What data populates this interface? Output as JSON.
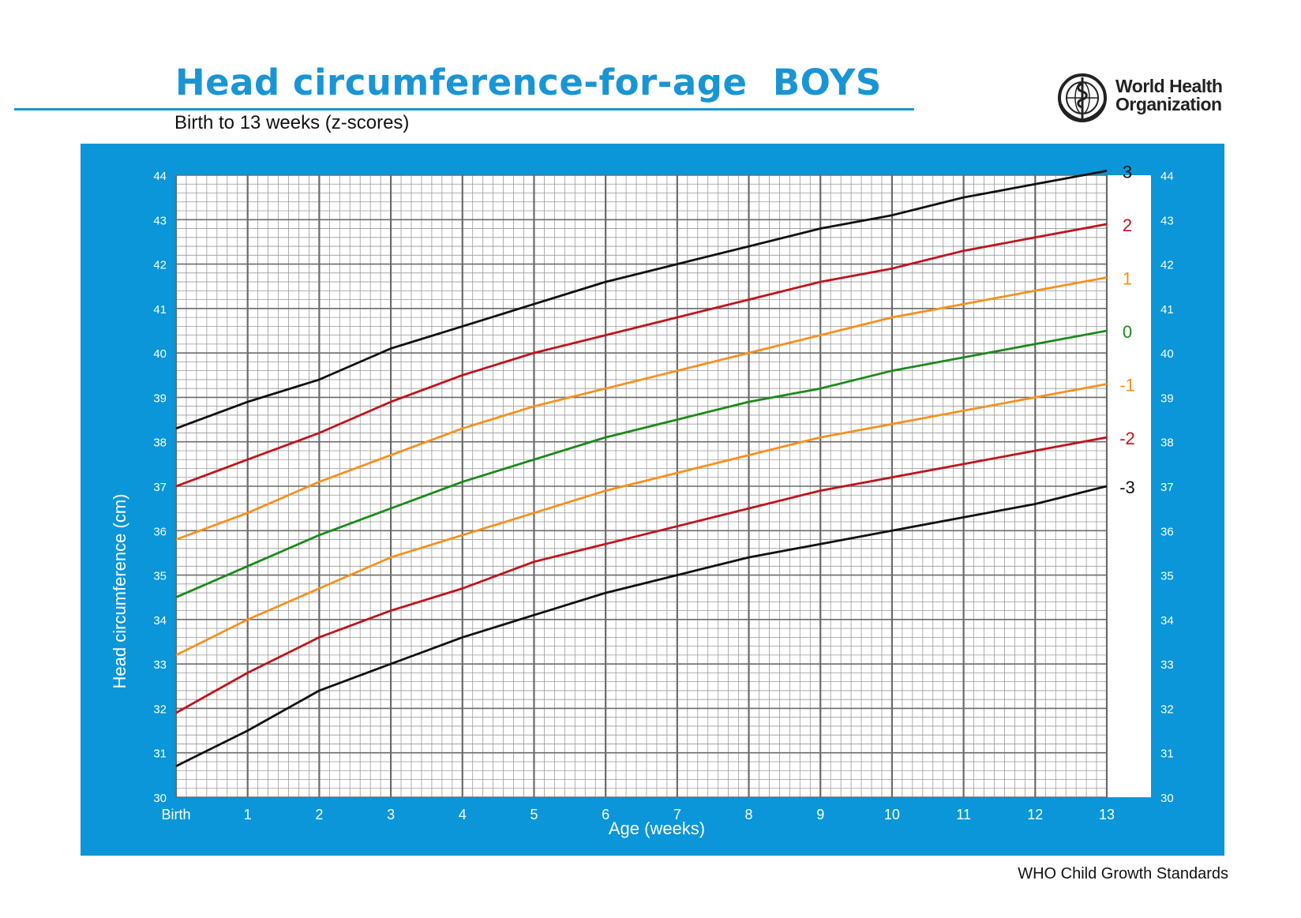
{
  "header": {
    "title": "Head circumference-for-age  BOYS",
    "subtitle": "Birth to 13 weeks (z-scores)",
    "org_line1": "World Health",
    "org_line2": "Organization",
    "footer": "WHO Child Growth Standards"
  },
  "colors": {
    "brand_blue": "#1a95d4",
    "panel_blue": "#0a96d8",
    "z3": "#111111",
    "z2": "#c0141c",
    "z1": "#f7901e",
    "z0": "#1b8a1b"
  },
  "chart_data": {
    "type": "line",
    "xlabel": "Age (weeks)",
    "ylabel": "Head circumference (cm)",
    "xlim": [
      0,
      13
    ],
    "ylim": [
      30,
      44
    ],
    "x_ticks": [
      "Birth",
      "1",
      "2",
      "3",
      "4",
      "5",
      "6",
      "7",
      "8",
      "9",
      "10",
      "11",
      "12",
      "13"
    ],
    "y_ticks": [
      "30",
      "31",
      "32",
      "33",
      "34",
      "35",
      "36",
      "37",
      "38",
      "39",
      "40",
      "41",
      "42",
      "43",
      "44"
    ],
    "grid": true,
    "x": [
      0,
      1,
      2,
      3,
      4,
      5,
      6,
      7,
      8,
      9,
      10,
      11,
      12,
      13
    ],
    "series": [
      {
        "name": "3",
        "color": "#111111",
        "values": [
          38.3,
          38.9,
          39.4,
          40.1,
          40.6,
          41.1,
          41.6,
          42.0,
          42.4,
          42.8,
          43.1,
          43.5,
          43.8,
          44.1
        ]
      },
      {
        "name": "2",
        "color": "#c0141c",
        "values": [
          37.0,
          37.6,
          38.2,
          38.9,
          39.5,
          40.0,
          40.4,
          40.8,
          41.2,
          41.6,
          41.9,
          42.3,
          42.6,
          42.9
        ]
      },
      {
        "name": "1",
        "color": "#f7901e",
        "values": [
          35.8,
          36.4,
          37.1,
          37.7,
          38.3,
          38.8,
          39.2,
          39.6,
          40.0,
          40.4,
          40.8,
          41.1,
          41.4,
          41.7
        ]
      },
      {
        "name": "0",
        "color": "#1b8a1b",
        "values": [
          34.5,
          35.2,
          35.9,
          36.5,
          37.1,
          37.6,
          38.1,
          38.5,
          38.9,
          39.2,
          39.6,
          39.9,
          40.2,
          40.5
        ]
      },
      {
        "name": "-1",
        "color": "#f7901e",
        "values": [
          33.2,
          34.0,
          34.7,
          35.4,
          35.9,
          36.4,
          36.9,
          37.3,
          37.7,
          38.1,
          38.4,
          38.7,
          39.0,
          39.3
        ]
      },
      {
        "name": "-2",
        "color": "#c0141c",
        "values": [
          31.9,
          32.8,
          33.6,
          34.2,
          34.7,
          35.3,
          35.7,
          36.1,
          36.5,
          36.9,
          37.2,
          37.5,
          37.8,
          38.1
        ]
      },
      {
        "name": "-3",
        "color": "#111111",
        "values": [
          30.7,
          31.5,
          32.4,
          33.0,
          33.6,
          34.1,
          34.6,
          35.0,
          35.4,
          35.7,
          36.0,
          36.3,
          36.6,
          37.0
        ]
      }
    ]
  }
}
